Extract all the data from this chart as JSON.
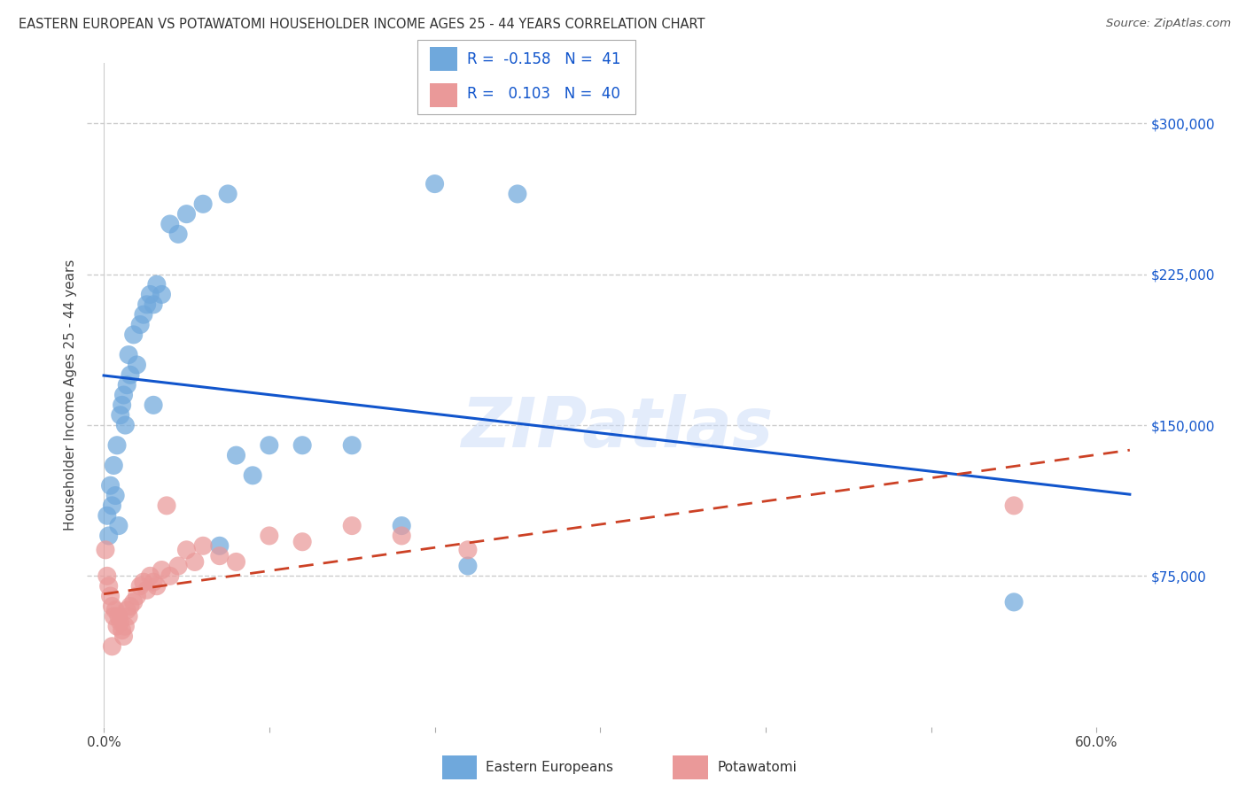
{
  "title": "EASTERN EUROPEAN VS POTAWATOMI HOUSEHOLDER INCOME AGES 25 - 44 YEARS CORRELATION CHART",
  "source": "Source: ZipAtlas.com",
  "ylabel": "Householder Income Ages 25 - 44 years",
  "ytick_labels": [
    "$75,000",
    "$150,000",
    "$225,000",
    "$300,000"
  ],
  "ytick_vals": [
    75000,
    150000,
    225000,
    300000
  ],
  "xtick_labels": [
    "0.0%",
    "",
    "",
    "",
    "",
    "",
    "60.0%"
  ],
  "xtick_vals": [
    0,
    10,
    20,
    30,
    40,
    50,
    60
  ],
  "ylim": [
    0,
    330000
  ],
  "xlim": [
    -1,
    63
  ],
  "blue_R": "-0.158",
  "blue_N": "41",
  "pink_R": "0.103",
  "pink_N": "40",
  "blue_color": "#6fa8dc",
  "pink_color": "#ea9999",
  "blue_line_color": "#1155cc",
  "pink_line_color": "#cc4125",
  "bg_color": "#ffffff",
  "grid_color": "#cccccc",
  "watermark": "ZIPatlas",
  "blue_label": "Eastern Europeans",
  "pink_label": "Potawatomi",
  "blue_x": [
    0.2,
    0.3,
    0.4,
    0.5,
    0.6,
    0.7,
    0.8,
    0.9,
    1.0,
    1.1,
    1.2,
    1.3,
    1.4,
    1.5,
    1.6,
    1.8,
    2.0,
    2.2,
    2.4,
    2.6,
    2.8,
    3.0,
    3.2,
    3.5,
    4.0,
    4.5,
    5.0,
    6.0,
    7.5,
    10.0,
    15.0,
    20.0,
    25.0,
    18.0,
    12.0,
    8.0,
    9.0,
    55.0,
    22.0,
    7.0,
    3.0
  ],
  "blue_y": [
    105000,
    95000,
    120000,
    110000,
    130000,
    115000,
    140000,
    100000,
    155000,
    160000,
    165000,
    150000,
    170000,
    185000,
    175000,
    195000,
    180000,
    200000,
    205000,
    210000,
    215000,
    210000,
    220000,
    215000,
    250000,
    245000,
    255000,
    260000,
    265000,
    140000,
    140000,
    270000,
    265000,
    100000,
    140000,
    135000,
    125000,
    62000,
    80000,
    90000,
    160000
  ],
  "pink_x": [
    0.1,
    0.2,
    0.3,
    0.4,
    0.5,
    0.6,
    0.7,
    0.8,
    0.9,
    1.0,
    1.1,
    1.2,
    1.3,
    1.4,
    1.5,
    1.6,
    1.8,
    2.0,
    2.2,
    2.4,
    2.6,
    2.8,
    3.0,
    3.2,
    3.5,
    4.0,
    4.5,
    5.0,
    5.5,
    6.0,
    7.0,
    8.0,
    10.0,
    12.0,
    15.0,
    18.0,
    22.0,
    55.0,
    3.8,
    0.5
  ],
  "pink_y": [
    88000,
    75000,
    70000,
    65000,
    60000,
    55000,
    58000,
    50000,
    55000,
    52000,
    48000,
    45000,
    50000,
    58000,
    55000,
    60000,
    62000,
    65000,
    70000,
    72000,
    68000,
    75000,
    72000,
    70000,
    78000,
    75000,
    80000,
    88000,
    82000,
    90000,
    85000,
    82000,
    95000,
    92000,
    100000,
    95000,
    88000,
    110000,
    110000,
    40000
  ]
}
